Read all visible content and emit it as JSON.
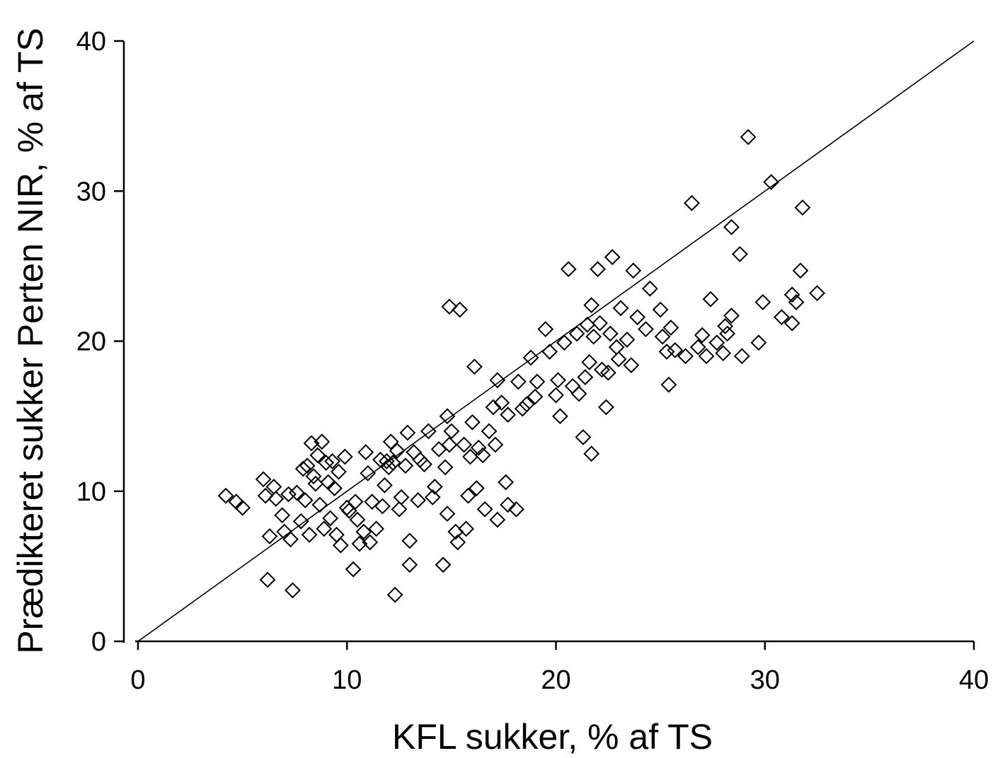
{
  "chart_data": {
    "type": "scatter",
    "xlabel": "KFL sukker, % af TS",
    "ylabel": "Prædikteret sukker Perten NIR, % af TS",
    "xlim": [
      0,
      40
    ],
    "ylim": [
      0,
      40
    ],
    "xticks": [
      0,
      10,
      20,
      30,
      40
    ],
    "yticks": [
      0,
      10,
      20,
      30,
      40
    ],
    "xtick_labels": [
      "0",
      "10",
      "20",
      "30",
      "40"
    ],
    "ytick_labels": [
      "0",
      "10",
      "20",
      "30",
      "40"
    ],
    "grid": false,
    "marker": "open-diamond",
    "reference_line": {
      "type": "1:1",
      "from": [
        0,
        0
      ],
      "to": [
        40,
        40
      ]
    },
    "series": [
      {
        "points": [
          [
            4.2,
            9.7
          ],
          [
            4.7,
            9.3
          ],
          [
            5.0,
            8.9
          ],
          [
            6.0,
            10.8
          ],
          [
            6.1,
            9.7
          ],
          [
            6.2,
            4.1
          ],
          [
            6.3,
            7.0
          ],
          [
            6.5,
            10.3
          ],
          [
            6.6,
            9.5
          ],
          [
            6.9,
            8.4
          ],
          [
            7.0,
            7.3
          ],
          [
            7.2,
            9.8
          ],
          [
            7.3,
            6.8
          ],
          [
            7.4,
            3.4
          ],
          [
            7.6,
            9.9
          ],
          [
            7.8,
            8.0
          ],
          [
            7.9,
            11.5
          ],
          [
            8.0,
            9.4
          ],
          [
            8.1,
            11.7
          ],
          [
            8.2,
            7.1
          ],
          [
            8.3,
            13.2
          ],
          [
            8.4,
            11.0
          ],
          [
            8.5,
            10.5
          ],
          [
            8.6,
            12.4
          ],
          [
            8.7,
            9.1
          ],
          [
            8.8,
            13.3
          ],
          [
            8.9,
            7.5
          ],
          [
            9.0,
            11.9
          ],
          [
            9.1,
            10.6
          ],
          [
            9.2,
            8.2
          ],
          [
            9.3,
            12.0
          ],
          [
            9.4,
            10.2
          ],
          [
            9.5,
            7.1
          ],
          [
            9.6,
            11.3
          ],
          [
            9.7,
            6.4
          ],
          [
            9.9,
            12.3
          ],
          [
            10.0,
            8.9
          ],
          [
            10.1,
            8.7
          ],
          [
            10.3,
            4.8
          ],
          [
            10.4,
            9.3
          ],
          [
            10.5,
            8.1
          ],
          [
            10.6,
            6.5
          ],
          [
            10.8,
            7.3
          ],
          [
            10.9,
            12.6
          ],
          [
            11.0,
            11.2
          ],
          [
            11.1,
            6.6
          ],
          [
            11.2,
            9.3
          ],
          [
            11.4,
            7.5
          ],
          [
            11.6,
            12.1
          ],
          [
            11.7,
            9.0
          ],
          [
            11.8,
            10.4
          ],
          [
            11.9,
            12.0
          ],
          [
            12.0,
            11.6
          ],
          [
            12.1,
            13.3
          ],
          [
            12.2,
            11.9
          ],
          [
            12.3,
            3.1
          ],
          [
            12.4,
            12.7
          ],
          [
            12.5,
            8.8
          ],
          [
            12.6,
            9.6
          ],
          [
            12.8,
            11.7
          ],
          [
            12.9,
            13.9
          ],
          [
            13.0,
            5.1
          ],
          [
            13.0,
            6.7
          ],
          [
            13.2,
            12.6
          ],
          [
            13.4,
            9.4
          ],
          [
            13.5,
            12.1
          ],
          [
            13.7,
            11.8
          ],
          [
            13.9,
            14.0
          ],
          [
            14.1,
            9.6
          ],
          [
            14.2,
            10.3
          ],
          [
            14.4,
            12.8
          ],
          [
            14.6,
            5.1
          ],
          [
            14.7,
            11.6
          ],
          [
            14.8,
            8.5
          ],
          [
            14.8,
            15.0
          ],
          [
            14.9,
            13.1
          ],
          [
            14.9,
            22.3
          ],
          [
            15.0,
            14.0
          ],
          [
            15.2,
            7.3
          ],
          [
            15.3,
            6.6
          ],
          [
            15.4,
            22.1
          ],
          [
            15.6,
            13.1
          ],
          [
            15.7,
            7.5
          ],
          [
            15.8,
            9.7
          ],
          [
            15.9,
            12.3
          ],
          [
            16.0,
            14.6
          ],
          [
            16.1,
            18.3
          ],
          [
            16.2,
            10.2
          ],
          [
            16.3,
            12.9
          ],
          [
            16.5,
            12.4
          ],
          [
            16.6,
            8.8
          ],
          [
            16.8,
            14.0
          ],
          [
            17.0,
            15.6
          ],
          [
            17.1,
            13.1
          ],
          [
            17.2,
            8.1
          ],
          [
            17.2,
            17.4
          ],
          [
            17.4,
            15.9
          ],
          [
            17.6,
            10.6
          ],
          [
            17.7,
            9.1
          ],
          [
            17.7,
            15.1
          ],
          [
            18.1,
            8.8
          ],
          [
            18.2,
            17.3
          ],
          [
            18.4,
            15.5
          ],
          [
            18.6,
            15.8
          ],
          [
            18.8,
            18.9
          ],
          [
            19.0,
            16.3
          ],
          [
            19.1,
            17.3
          ],
          [
            19.5,
            20.8
          ],
          [
            19.7,
            19.3
          ],
          [
            20.0,
            16.4
          ],
          [
            20.1,
            17.4
          ],
          [
            20.2,
            15.0
          ],
          [
            20.4,
            19.9
          ],
          [
            20.6,
            24.8
          ],
          [
            20.8,
            17.0
          ],
          [
            21.0,
            20.5
          ],
          [
            21.1,
            16.5
          ],
          [
            21.3,
            13.6
          ],
          [
            21.4,
            17.6
          ],
          [
            21.5,
            21.1
          ],
          [
            21.6,
            18.6
          ],
          [
            21.7,
            12.5
          ],
          [
            21.7,
            22.4
          ],
          [
            21.8,
            20.3
          ],
          [
            22.0,
            24.8
          ],
          [
            22.1,
            21.2
          ],
          [
            22.2,
            18.1
          ],
          [
            22.4,
            15.6
          ],
          [
            22.5,
            17.9
          ],
          [
            22.6,
            20.5
          ],
          [
            22.7,
            25.6
          ],
          [
            22.9,
            19.6
          ],
          [
            23.0,
            18.8
          ],
          [
            23.1,
            22.2
          ],
          [
            23.4,
            20.1
          ],
          [
            23.6,
            18.4
          ],
          [
            23.7,
            24.7
          ],
          [
            23.9,
            21.6
          ],
          [
            24.3,
            20.8
          ],
          [
            24.5,
            23.5
          ],
          [
            25.0,
            22.1
          ],
          [
            25.1,
            20.3
          ],
          [
            25.3,
            19.3
          ],
          [
            25.4,
            17.1
          ],
          [
            25.5,
            20.9
          ],
          [
            25.7,
            19.4
          ],
          [
            26.2,
            19.0
          ],
          [
            26.5,
            29.2
          ],
          [
            26.8,
            19.6
          ],
          [
            27.0,
            20.4
          ],
          [
            27.2,
            19.0
          ],
          [
            27.4,
            22.8
          ],
          [
            27.7,
            19.9
          ],
          [
            28.0,
            19.2
          ],
          [
            28.1,
            21.0
          ],
          [
            28.2,
            20.5
          ],
          [
            28.4,
            21.7
          ],
          [
            28.4,
            27.6
          ],
          [
            28.8,
            25.8
          ],
          [
            28.9,
            19.0
          ],
          [
            29.2,
            33.6
          ],
          [
            29.7,
            19.9
          ],
          [
            29.9,
            22.6
          ],
          [
            30.3,
            30.6
          ],
          [
            30.8,
            21.6
          ],
          [
            31.3,
            21.2
          ],
          [
            31.3,
            23.1
          ],
          [
            31.5,
            22.6
          ],
          [
            31.7,
            24.7
          ],
          [
            31.8,
            28.9
          ],
          [
            32.5,
            23.2
          ]
        ]
      }
    ]
  }
}
